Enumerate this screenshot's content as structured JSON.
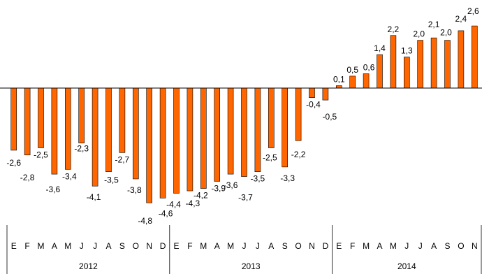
{
  "chart_data": {
    "type": "bar",
    "categories": [
      "E",
      "F",
      "M",
      "A",
      "M",
      "J",
      "J",
      "A",
      "S",
      "O",
      "N",
      "D",
      "E",
      "F",
      "M",
      "A",
      "M",
      "J",
      "J",
      "A",
      "S",
      "O",
      "N",
      "D",
      "E",
      "F",
      "M",
      "A",
      "M",
      "J",
      "J",
      "A",
      "S",
      "O",
      "N"
    ],
    "values": [
      -2.6,
      -2.8,
      -2.5,
      -3.6,
      -3.4,
      -2.3,
      -4.1,
      -3.5,
      -2.7,
      -3.8,
      -4.8,
      -4.6,
      -4.4,
      -4.3,
      -4.2,
      -3.9,
      -3.6,
      -3.7,
      -3.5,
      -2.5,
      -3.3,
      -2.2,
      -0.4,
      -0.5,
      0.1,
      0.5,
      0.6,
      1.4,
      2.2,
      1.3,
      2.0,
      2.1,
      2.0,
      2.4,
      2.6
    ],
    "value_labels": [
      "-2,6",
      "-2,8",
      "-2,5",
      "-3,6",
      "-3,4",
      "-2,3",
      "-4,1",
      "-3,5",
      "-2,7",
      "-3,8",
      "-4,8",
      "-4,6",
      "-4,4",
      "-4,3",
      "-4,2",
      "-3,9",
      "-3,6",
      "-3,7",
      "-3,5",
      "-2,5",
      "-3,3",
      "-2,2",
      "-0,4",
      "-0,5",
      "0,1",
      "0,5",
      "0,6",
      "1,4",
      "2,2",
      "1,3",
      "2,0",
      "2,1",
      "2,0",
      "2,4",
      "2,6"
    ],
    "years": [
      {
        "label": "2012",
        "months": 12
      },
      {
        "label": "2013",
        "months": 12
      },
      {
        "label": "2014",
        "months": 11
      }
    ],
    "ylim": [
      -5.0,
      3.0
    ],
    "bar_color": "#ff6600",
    "bar_edge_color": "#000000",
    "grid": false,
    "legend": "none"
  }
}
